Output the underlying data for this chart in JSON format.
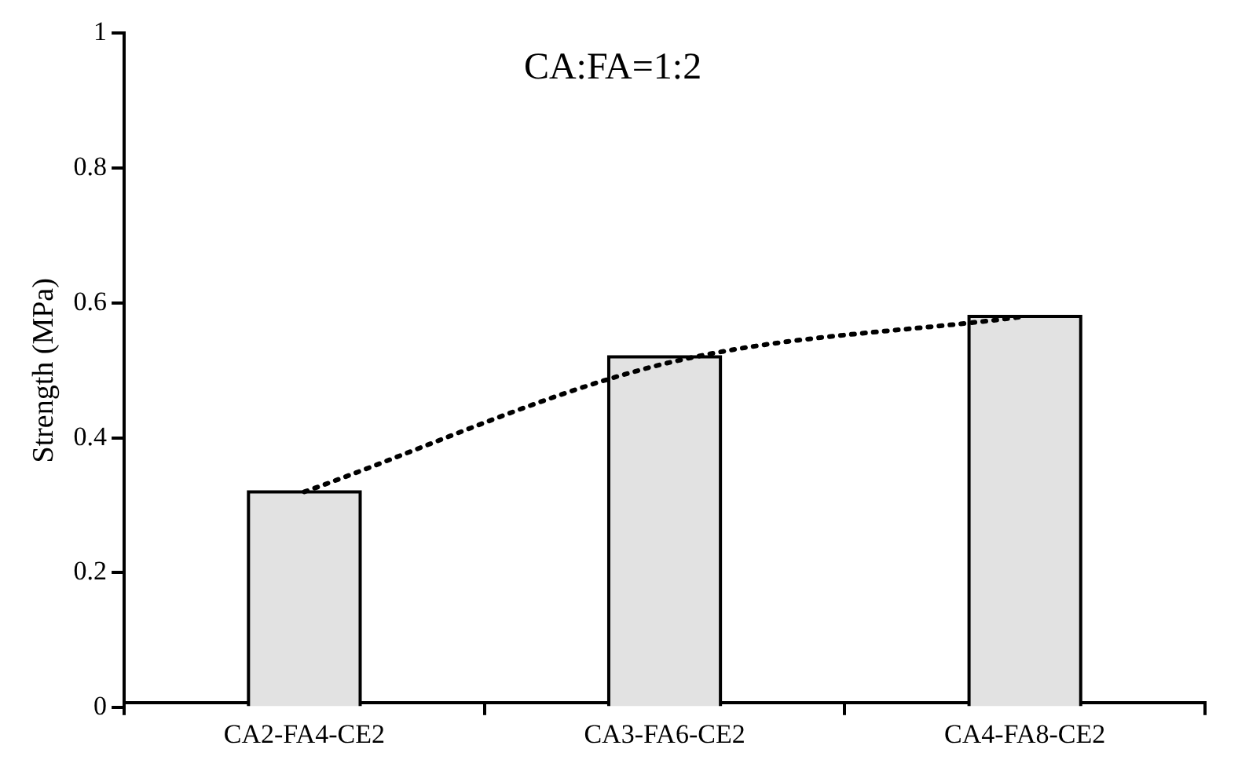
{
  "chart_data": {
    "type": "bar",
    "title": "CA:FA=1:2",
    "ylabel": "Strength (MPa)",
    "categories": [
      "CA2-FA4-CE2",
      "CA3-FA6-CE2",
      "CA4-FA8-CE2"
    ],
    "series": [
      {
        "color": "#e2e2e2",
        "values": [
          0.32,
          0.52,
          0.58
        ]
      },
      {
        "type": "line",
        "color": "#000000",
        "values": [
          0.32,
          0.51,
          0.58
        ],
        "line_style": "dotted",
        "marker": "none"
      }
    ],
    "ylim": [
      0,
      1
    ],
    "yticks": [
      0,
      0.2,
      0.4,
      0.6,
      0.8,
      1
    ],
    "grid": false,
    "legend": false
  }
}
